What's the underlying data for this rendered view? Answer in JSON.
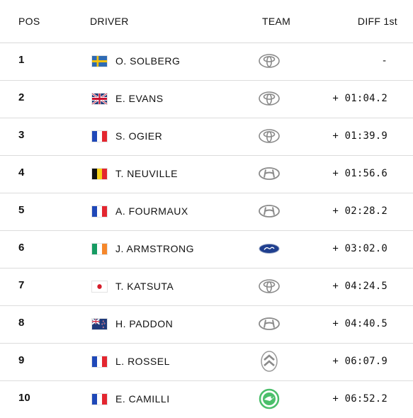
{
  "header": {
    "pos": "POS",
    "driver": "DRIVER",
    "team": "TEAM",
    "diff": "DIFF 1st"
  },
  "rows": [
    {
      "pos": "1",
      "flag": "sweden-flag",
      "driver": "O. SOLBERG",
      "team": "toyota-logo",
      "diff": "-"
    },
    {
      "pos": "2",
      "flag": "uk-flag",
      "driver": "E. EVANS",
      "team": "toyota-logo",
      "diff": "+ 01:04.2"
    },
    {
      "pos": "3",
      "flag": "france-flag",
      "driver": "S. OGIER",
      "team": "toyota-logo",
      "diff": "+ 01:39.9"
    },
    {
      "pos": "4",
      "flag": "belgium-flag",
      "driver": "T. NEUVILLE",
      "team": "hyundai-logo",
      "diff": "+ 01:56.6"
    },
    {
      "pos": "5",
      "flag": "france-flag",
      "driver": "A. FOURMAUX",
      "team": "hyundai-logo",
      "diff": "+ 02:28.2"
    },
    {
      "pos": "6",
      "flag": "ireland-flag",
      "driver": "J. ARMSTRONG",
      "team": "ford-logo",
      "diff": "+ 03:02.0"
    },
    {
      "pos": "7",
      "flag": "japan-flag",
      "driver": "T. KATSUTA",
      "team": "toyota-logo",
      "diff": "+ 04:24.5"
    },
    {
      "pos": "8",
      "flag": "nz-flag",
      "driver": "H. PADDON",
      "team": "hyundai-logo",
      "diff": "+ 04:40.5"
    },
    {
      "pos": "9",
      "flag": "france-flag",
      "driver": "L. ROSSEL",
      "team": "citroen-logo",
      "diff": "+ 06:07.9"
    },
    {
      "pos": "10",
      "flag": "france-flag",
      "driver": "E. CAMILLI",
      "team": "skoda-logo",
      "diff": "+ 06:52.2"
    }
  ],
  "colors": {
    "text": "#111111",
    "divider": "#dcdcdc",
    "logo_grey": "#8a8a8a",
    "ford_blue": "#1f3f8f",
    "skoda_green": "#4bbf6b"
  }
}
